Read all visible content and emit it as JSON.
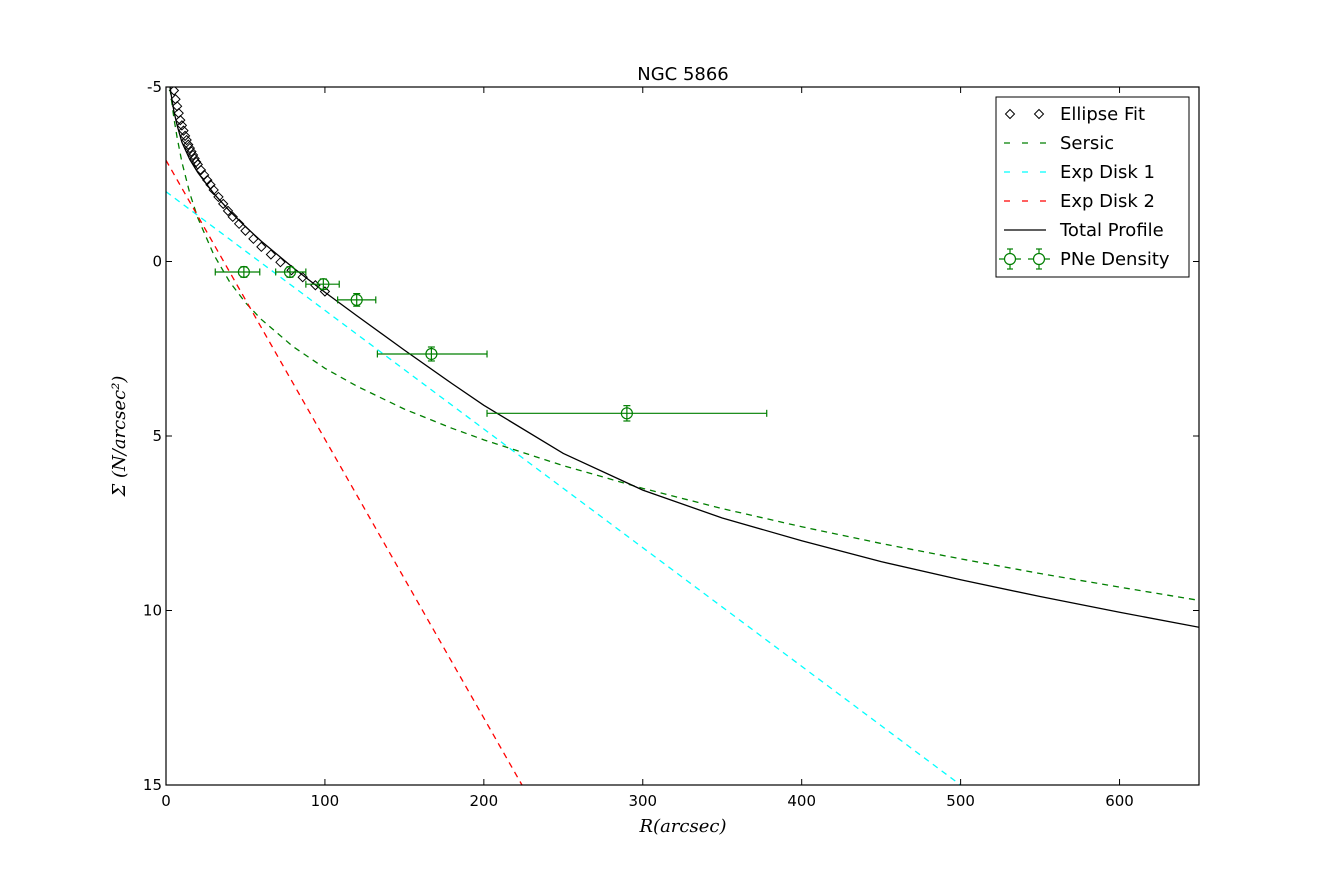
{
  "chart_data": {
    "type": "line",
    "title": "NGC 5866",
    "xlabel": "R(arcsec)",
    "ylabel": "Σ (N/arcsec²)",
    "xlim": [
      0,
      650
    ],
    "ylim": [
      -5,
      15
    ],
    "y_inverted": true,
    "x_ticks": [
      0,
      100,
      200,
      300,
      400,
      500,
      600
    ],
    "y_ticks": [
      -5,
      0,
      5,
      10,
      15
    ],
    "grid": false,
    "legend_position": "top-right",
    "series": [
      {
        "name": "Ellipse Fit",
        "kind": "markers",
        "marker": "diamond-open",
        "color": "#000000",
        "x": [
          5,
          6,
          7,
          8,
          9,
          10,
          11,
          12,
          13,
          14,
          15,
          16,
          17,
          18,
          19,
          20,
          22,
          24,
          26,
          28,
          30,
          33,
          36,
          39,
          42,
          46,
          50,
          55,
          60,
          66,
          72,
          79,
          86,
          94,
          100
        ],
        "y": [
          -4.9,
          -4.65,
          -4.45,
          -4.25,
          -4.05,
          -3.9,
          -3.75,
          -3.6,
          -3.48,
          -3.35,
          -3.25,
          -3.15,
          -3.05,
          -2.95,
          -2.85,
          -2.78,
          -2.62,
          -2.48,
          -2.33,
          -2.2,
          -2.05,
          -1.85,
          -1.65,
          -1.45,
          -1.28,
          -1.08,
          -0.88,
          -0.65,
          -0.42,
          -0.2,
          0.02,
          0.25,
          0.45,
          0.68,
          0.86
        ]
      },
      {
        "name": "Sersic",
        "kind": "line",
        "dash": "dashed",
        "color": "#007f00",
        "x": [
          0.5,
          1,
          2,
          3,
          5,
          7,
          10,
          15,
          20,
          30,
          40,
          50,
          60,
          80,
          100,
          120,
          150,
          180,
          200,
          250,
          300,
          350,
          400,
          450,
          500,
          550,
          600,
          650
        ],
        "y": [
          -5.9,
          -5.64,
          -5.18,
          -4.78,
          -4.1,
          -3.55,
          -2.85,
          -1.95,
          -1.25,
          -0.2,
          0.58,
          1.18,
          1.66,
          2.44,
          3.06,
          3.57,
          4.23,
          4.78,
          5.11,
          5.85,
          6.5,
          7.08,
          7.6,
          8.08,
          8.52,
          8.94,
          9.33,
          9.71
        ]
      },
      {
        "name": "Exp Disk 1",
        "kind": "line",
        "dash": "dashed",
        "color": "#00ffff",
        "x": [
          0,
          500
        ],
        "y": [
          -2.0,
          15.0
        ]
      },
      {
        "name": "Exp Disk 2",
        "kind": "line",
        "dash": "dashed",
        "color": "#ff0000",
        "x": [
          0,
          224
        ],
        "y": [
          -2.9,
          15.0
        ]
      },
      {
        "name": "Total Profile",
        "kind": "line",
        "dash": "solid",
        "color": "#000000",
        "x": [
          0.5,
          1,
          2,
          3,
          5,
          7,
          10,
          15,
          20,
          30,
          40,
          50,
          60,
          80,
          100,
          120,
          150,
          180,
          200,
          250,
          300,
          350,
          400,
          450,
          500,
          550,
          600,
          650
        ],
        "y": [
          -5.9,
          -5.64,
          -5.2,
          -4.85,
          -4.3,
          -3.9,
          -3.42,
          -2.92,
          -2.55,
          -1.95,
          -1.45,
          -1.0,
          -0.58,
          0.18,
          0.88,
          1.55,
          2.54,
          3.5,
          4.12,
          5.5,
          6.55,
          7.35,
          8.0,
          8.6,
          9.12,
          9.6,
          10.05,
          10.48
        ]
      },
      {
        "name": "PNe Density",
        "kind": "errorbar",
        "marker": "circle-open",
        "color": "#007f00",
        "x": [
          49,
          78,
          99,
          120,
          167,
          290
        ],
        "y": [
          0.3,
          0.3,
          0.65,
          1.1,
          2.65,
          4.35
        ],
        "xerr": [
          [
            18,
            10
          ],
          [
            9,
            10
          ],
          [
            11,
            10
          ],
          [
            12,
            12
          ],
          [
            34,
            35
          ],
          [
            88,
            88
          ]
        ],
        "yerr": [
          0.15,
          0.15,
          0.15,
          0.18,
          0.2,
          0.22
        ]
      }
    ]
  }
}
